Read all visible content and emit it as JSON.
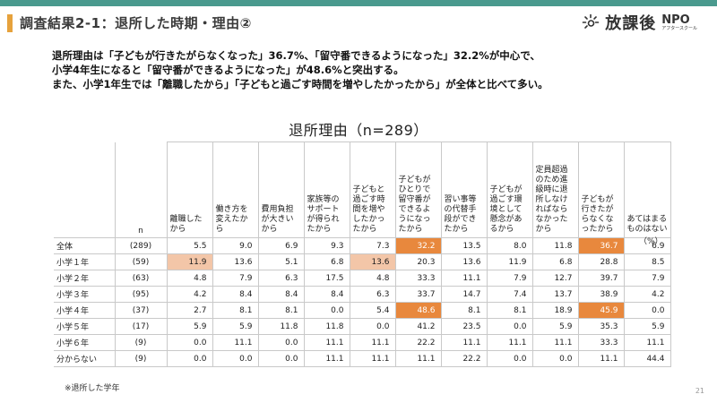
{
  "header": {
    "title": "調査結果2-1：退所した時期・理由②",
    "logo_text": "放課後",
    "logo_npo": "NPO",
    "logo_sub": "アフタースクール"
  },
  "summary": [
    "退所理由は「子どもが行きたがらなくなった」36.7%、「留守番できるようになった」32.2%が中心で、",
    "小学4年生になると「留守番ができるようになった」が48.6%と突出する。",
    "また、小学1年生では「離職したから」「子どもと過ごす時間を増やしたかったから」が全体と比べて多い。"
  ],
  "chart_data": {
    "type": "table",
    "title": "退所理由（n=289）",
    "n_header": "n",
    "unit": "（%）",
    "columns": [
      "離職したから",
      "働き方を変えたから",
      "費用負担が大きいから",
      "家族等のサポートが得られたから",
      "子どもと過ごす時間を増やしたかったから",
      "子どもがひとりで留守番ができるようになったから",
      "習い事等の代替手段ができたから",
      "子どもが過ごす環境として懸念があるから",
      "定員超過のため進級時に退所しなければならなかったから",
      "子どもが行きたがらなくなったから",
      "あてはまるものはない"
    ],
    "rows": [
      {
        "label": "全体",
        "n": "(289)",
        "values": [
          "5.5",
          "9.0",
          "6.9",
          "9.3",
          "7.3",
          "32.2",
          "13.5",
          "8.0",
          "11.8",
          "36.7",
          "6.9"
        ],
        "highlight": [
          "",
          "",
          "",
          "",
          "",
          "dark",
          "",
          "",
          "",
          "dark",
          ""
        ]
      },
      {
        "label": "小学１年",
        "n": "(59)",
        "values": [
          "11.9",
          "13.6",
          "5.1",
          "6.8",
          "13.6",
          "20.3",
          "13.6",
          "11.9",
          "6.8",
          "28.8",
          "8.5"
        ],
        "highlight": [
          "light",
          "",
          "",
          "",
          "light",
          "",
          "",
          "",
          "",
          "",
          ""
        ]
      },
      {
        "label": "小学２年",
        "n": "(63)",
        "values": [
          "4.8",
          "7.9",
          "6.3",
          "17.5",
          "4.8",
          "33.3",
          "11.1",
          "7.9",
          "12.7",
          "39.7",
          "7.9"
        ],
        "highlight": [
          "",
          "",
          "",
          "",
          "",
          "",
          "",
          "",
          "",
          "",
          ""
        ]
      },
      {
        "label": "小学３年",
        "n": "(95)",
        "values": [
          "4.2",
          "8.4",
          "8.4",
          "8.4",
          "6.3",
          "33.7",
          "14.7",
          "7.4",
          "13.7",
          "38.9",
          "4.2"
        ],
        "highlight": [
          "",
          "",
          "",
          "",
          "",
          "",
          "",
          "",
          "",
          "",
          ""
        ]
      },
      {
        "label": "小学４年",
        "n": "(37)",
        "values": [
          "2.7",
          "8.1",
          "8.1",
          "0.0",
          "5.4",
          "48.6",
          "8.1",
          "8.1",
          "18.9",
          "45.9",
          "0.0"
        ],
        "highlight": [
          "",
          "",
          "",
          "",
          "",
          "dark",
          "",
          "",
          "",
          "dark",
          ""
        ]
      },
      {
        "label": "小学５年",
        "n": "(17)",
        "values": [
          "5.9",
          "5.9",
          "11.8",
          "11.8",
          "0.0",
          "41.2",
          "23.5",
          "0.0",
          "5.9",
          "35.3",
          "5.9"
        ],
        "highlight": [
          "",
          "",
          "",
          "",
          "",
          "",
          "",
          "",
          "",
          "",
          ""
        ]
      },
      {
        "label": "小学６年",
        "n": "(9)",
        "values": [
          "0.0",
          "11.1",
          "0.0",
          "11.1",
          "11.1",
          "22.2",
          "11.1",
          "11.1",
          "11.1",
          "33.3",
          "11.1"
        ],
        "highlight": [
          "",
          "",
          "",
          "",
          "",
          "",
          "",
          "",
          "",
          "",
          ""
        ]
      },
      {
        "label": "分からない",
        "n": "(9)",
        "values": [
          "0.0",
          "0.0",
          "0.0",
          "11.1",
          "11.1",
          "11.1",
          "22.2",
          "0.0",
          "0.0",
          "11.1",
          "44.4"
        ],
        "highlight": [
          "",
          "",
          "",
          "",
          "",
          "",
          "",
          "",
          "",
          "",
          ""
        ]
      }
    ]
  },
  "footnote": "※退所した学年",
  "page_number": "21",
  "colors": {
    "accent": "#4a9a8e",
    "title_bar": "#e6a23c",
    "highlight_dark": "#e8883d",
    "highlight_light": "#f3c6a8"
  }
}
